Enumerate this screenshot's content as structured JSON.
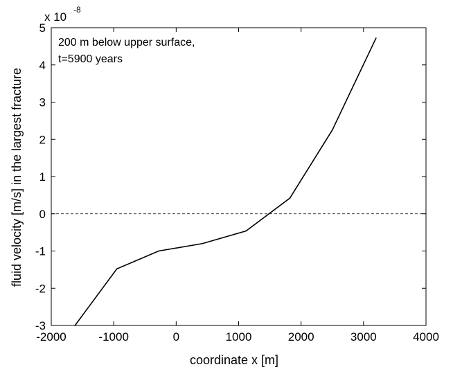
{
  "chart_data": {
    "type": "line",
    "title": "",
    "xlabel": "coordinate x [m]",
    "ylabel": "fluid velocity [m/s] in the largest fracture",
    "xlim": [
      -2000,
      4000
    ],
    "ylim": [
      -3,
      5
    ],
    "y_scale_factor_label": "x 10",
    "y_scale_factor_exponent": "-8",
    "x_ticks": [
      -2000,
      -1000,
      0,
      1000,
      2000,
      3000,
      4000
    ],
    "x_tick_labels": [
      "-2000",
      "-1000",
      "0",
      "1000",
      "2000",
      "3000",
      "4000"
    ],
    "y_ticks": [
      -3,
      -2,
      -1,
      0,
      1,
      2,
      3,
      4,
      5
    ],
    "y_tick_labels": [
      "-3",
      "-2",
      "-1",
      "0",
      "1",
      "2",
      "3",
      "4",
      "5"
    ],
    "annotation_lines": [
      "200 m below upper surface,",
      "t=5900 years"
    ],
    "grid": false,
    "series": [
      {
        "x": [
          -1620,
          -950,
          -280,
          420,
          1120,
          1820,
          2500,
          3200
        ],
        "y": [
          -3.0,
          -1.48,
          -1.0,
          -0.8,
          -0.46,
          0.42,
          2.25,
          4.72
        ],
        "color": "#000000",
        "style": "solid"
      }
    ],
    "reference_line": {
      "y": 0,
      "style": "dashed",
      "color": "#000000"
    }
  }
}
